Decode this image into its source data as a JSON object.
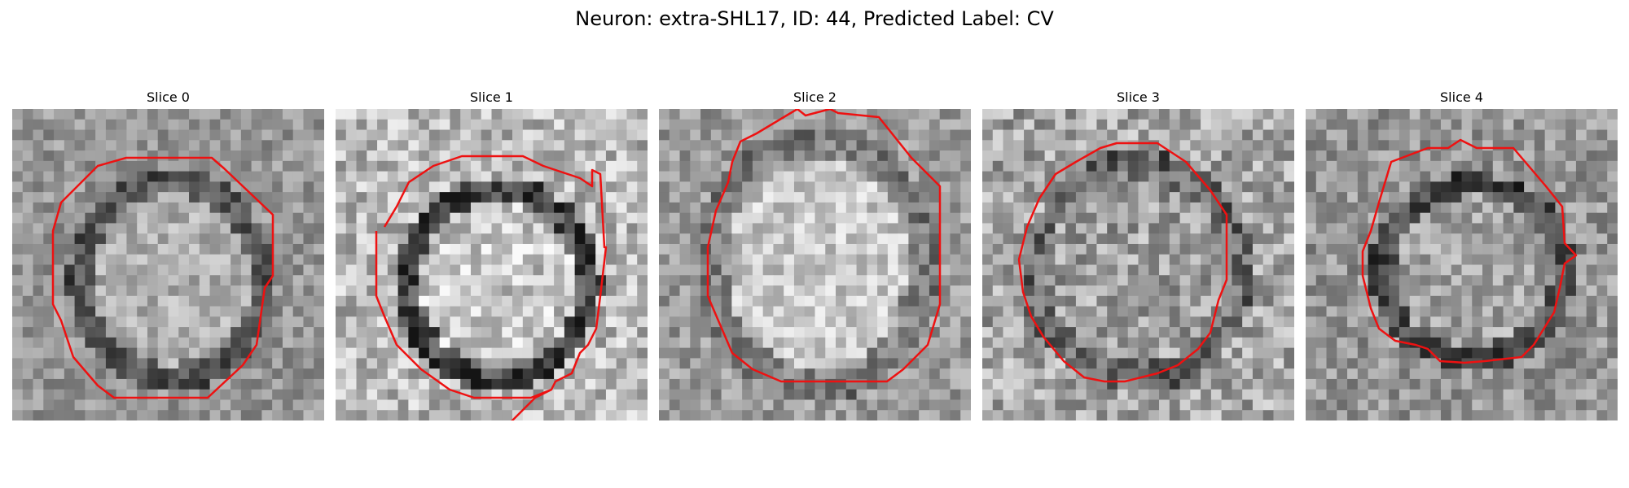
{
  "figure": {
    "title": "Neuron: extra-SHL17, ID: 44, Predicted Label: CV"
  },
  "panels": [
    {
      "title": "Slice 0"
    },
    {
      "title": "Slice 1"
    },
    {
      "title": "Slice 2"
    },
    {
      "title": "Slice 3"
    },
    {
      "title": "Slice 4"
    }
  ],
  "colors": {
    "contour": "#ee1111"
  }
}
